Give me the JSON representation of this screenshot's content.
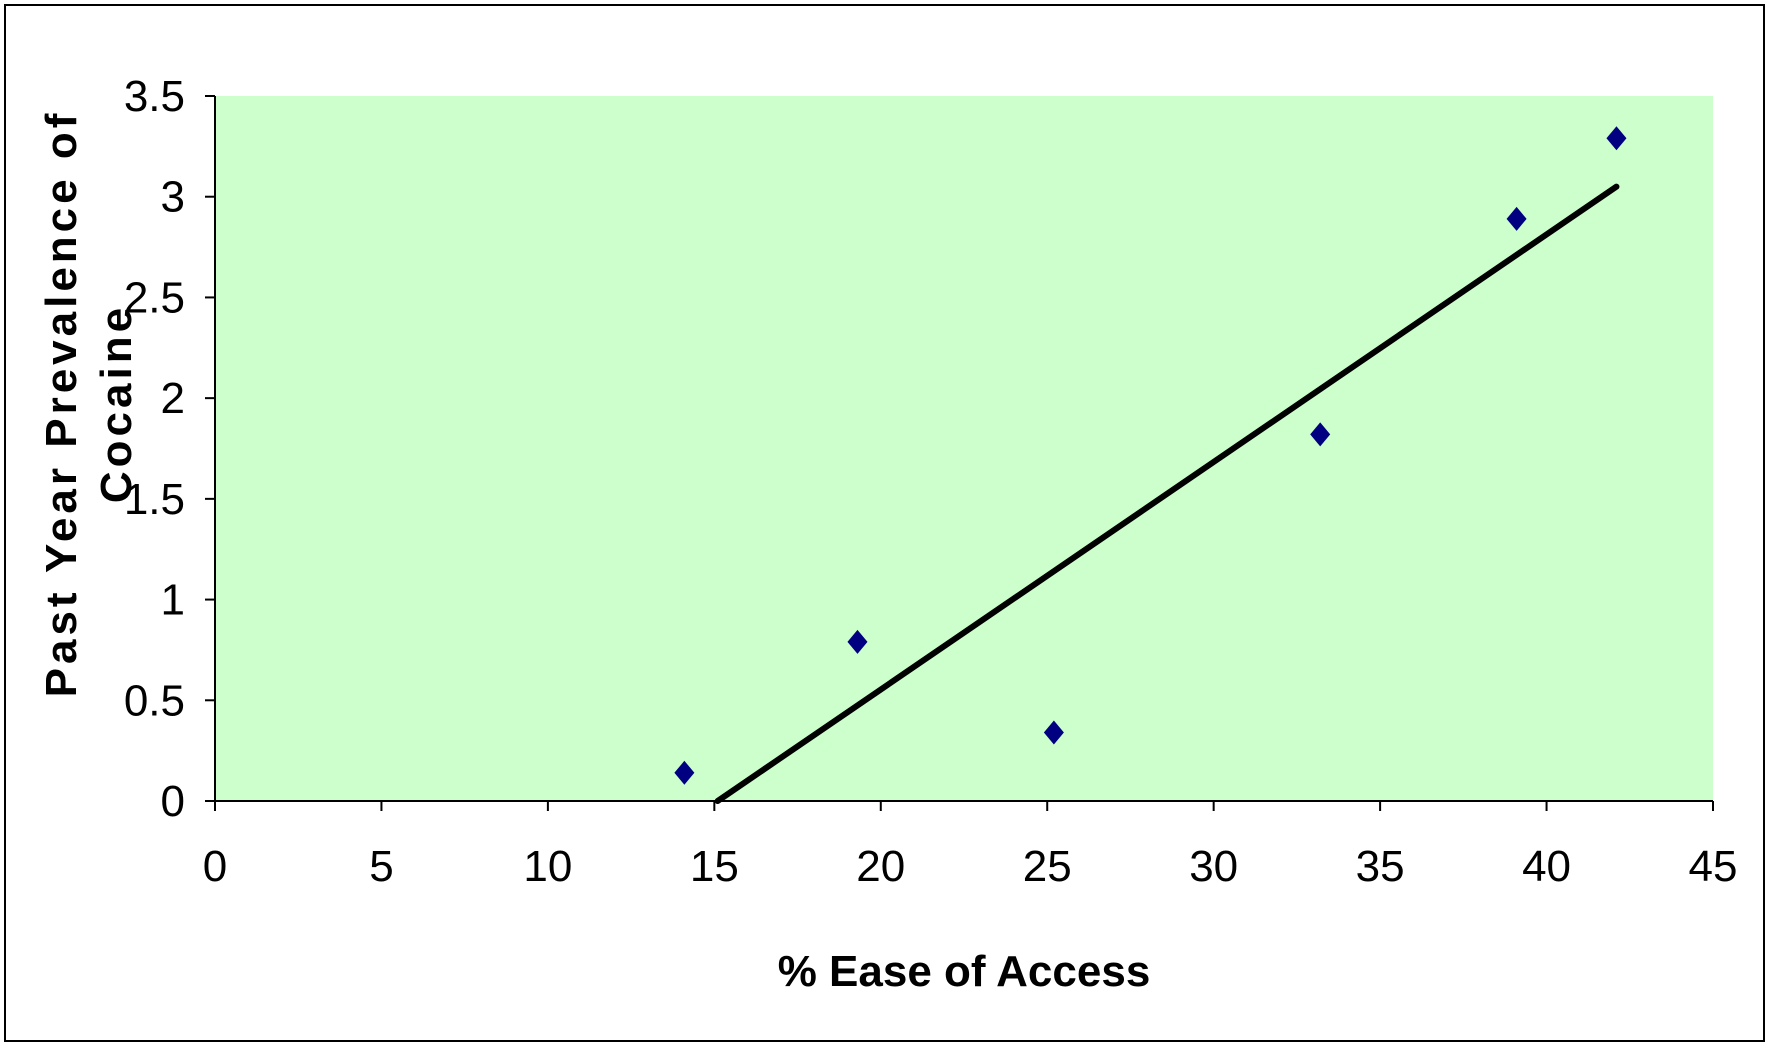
{
  "chart_data": {
    "type": "scatter",
    "title": "",
    "xlabel": "% Ease of Access",
    "ylabel": "Past Year Prevalence of Cocaine",
    "ylabel_lines": [
      "Past Year Prevalence of",
      "Cocaine"
    ],
    "xlim": [
      0,
      45
    ],
    "ylim": [
      0,
      3.5
    ],
    "x_ticks": [
      0,
      5,
      10,
      15,
      20,
      25,
      30,
      35,
      40,
      45
    ],
    "y_ticks": [
      0,
      0.5,
      1,
      1.5,
      2,
      2.5,
      3,
      3.5
    ],
    "grid": false,
    "legend": "none",
    "series": [
      {
        "x": [
          14.1,
          19.3,
          25.2,
          33.2,
          39.1,
          42.1
        ],
        "y": [
          0.14,
          0.79,
          0.34,
          1.82,
          2.89,
          3.29
        ],
        "marker": "diamond",
        "color": "#000080"
      }
    ],
    "trendline": {
      "type": "linear",
      "x": [
        15.1,
        42.1
      ],
      "y": [
        0,
        3.05
      ],
      "color": "#000000"
    },
    "plot_background": "#CCFFCC"
  }
}
